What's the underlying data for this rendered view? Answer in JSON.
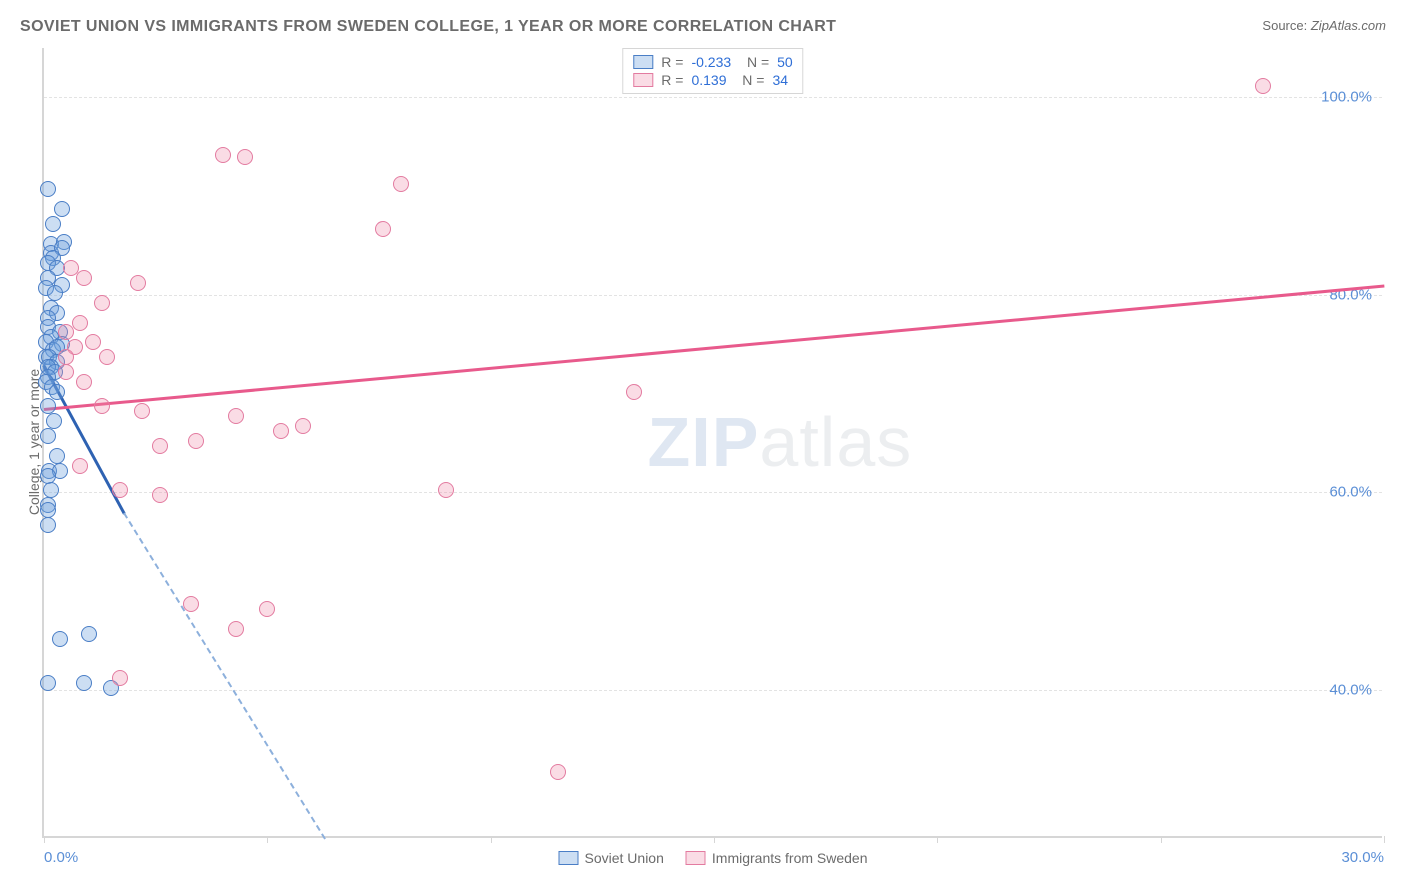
{
  "title": "SOVIET UNION VS IMMIGRANTS FROM SWEDEN COLLEGE, 1 YEAR OR MORE CORRELATION CHART",
  "source_label": "Source:",
  "source_value": "ZipAtlas.com",
  "y_axis_label": "College, 1 year or more",
  "watermark_zip": "ZIP",
  "watermark_atlas": "atlas",
  "chart": {
    "type": "scatter",
    "xlim": [
      0,
      30
    ],
    "ylim": [
      25,
      105
    ],
    "x_ticks": [
      0,
      5,
      10,
      15,
      20,
      25,
      30
    ],
    "x_tick_labels": {
      "0": "0.0%",
      "30": "30.0%"
    },
    "y_gridlines": [
      40,
      60,
      80,
      100
    ],
    "y_tick_labels": {
      "40": "40.0%",
      "60": "60.0%",
      "80": "80.0%",
      "100": "100.0%"
    },
    "background_color": "#ffffff",
    "grid_color": "#e3e3e3",
    "axis_color": "#d6d6d6",
    "tick_label_color": "#5b8fd6",
    "series": [
      {
        "name": "Soviet Union",
        "color_fill": "rgba(110,160,220,0.35)",
        "color_stroke": "#4a7ec6",
        "R": "-0.233",
        "N": "50",
        "trend": {
          "x1": 0,
          "y1": 73,
          "x2_solid": 1.8,
          "y2_solid": 58,
          "x2_dash": 6.3,
          "y2_dash": 25,
          "color": "#2e62b2"
        },
        "points": [
          [
            0.1,
            90.5
          ],
          [
            0.4,
            88.5
          ],
          [
            0.2,
            87
          ],
          [
            0.15,
            85
          ],
          [
            0.45,
            85.2
          ],
          [
            0.15,
            84
          ],
          [
            0.4,
            84.5
          ],
          [
            0.2,
            83.5
          ],
          [
            0.1,
            83
          ],
          [
            0.3,
            82.5
          ],
          [
            0.1,
            81.5
          ],
          [
            0.05,
            80.5
          ],
          [
            0.4,
            80.8
          ],
          [
            0.25,
            80
          ],
          [
            0.15,
            78.5
          ],
          [
            0.3,
            78
          ],
          [
            0.1,
            77.5
          ],
          [
            0.1,
            76.5
          ],
          [
            0.35,
            76
          ],
          [
            0.15,
            75.5
          ],
          [
            0.05,
            75
          ],
          [
            0.4,
            74.8
          ],
          [
            0.2,
            74.2
          ],
          [
            0.3,
            74.5
          ],
          [
            0.05,
            73.5
          ],
          [
            0.12,
            73.5
          ],
          [
            0.3,
            73
          ],
          [
            0.15,
            72.5
          ],
          [
            0.08,
            72.5
          ],
          [
            0.25,
            72
          ],
          [
            0.1,
            71.5
          ],
          [
            0.05,
            71
          ],
          [
            0.18,
            70.5
          ],
          [
            0.3,
            70
          ],
          [
            0.1,
            68.5
          ],
          [
            0.22,
            67
          ],
          [
            0.1,
            65.5
          ],
          [
            0.3,
            63.5
          ],
          [
            0.12,
            62
          ],
          [
            0.35,
            62
          ],
          [
            0.1,
            61.5
          ],
          [
            0.15,
            60
          ],
          [
            0.1,
            58.5
          ],
          [
            0.08,
            58
          ],
          [
            0.1,
            56.5
          ],
          [
            0.35,
            45
          ],
          [
            1.0,
            45.5
          ],
          [
            0.9,
            40.5
          ],
          [
            0.1,
            40.5
          ],
          [
            1.5,
            40
          ]
        ]
      },
      {
        "name": "Immigrants from Sweden",
        "color_fill": "rgba(240,140,170,0.3)",
        "color_stroke": "#e37ba0",
        "R": "0.139",
        "N": "34",
        "trend": {
          "x1": 0,
          "y1": 68.5,
          "x2_solid": 30,
          "y2_solid": 81,
          "color": "#e85a8c"
        },
        "points": [
          [
            27.3,
            101
          ],
          [
            4.0,
            94
          ],
          [
            4.5,
            93.8
          ],
          [
            8.0,
            91
          ],
          [
            7.6,
            86.5
          ],
          [
            0.6,
            82.5
          ],
          [
            0.9,
            81.5
          ],
          [
            2.1,
            81
          ],
          [
            1.3,
            79
          ],
          [
            0.8,
            77
          ],
          [
            0.5,
            76
          ],
          [
            1.1,
            75
          ],
          [
            0.7,
            74.5
          ],
          [
            0.5,
            73.5
          ],
          [
            1.4,
            73.5
          ],
          [
            0.5,
            72
          ],
          [
            0.9,
            71
          ],
          [
            13.2,
            70
          ],
          [
            1.3,
            68.5
          ],
          [
            2.2,
            68
          ],
          [
            4.3,
            67.5
          ],
          [
            5.3,
            66
          ],
          [
            5.8,
            66.5
          ],
          [
            3.4,
            65
          ],
          [
            2.6,
            64.5
          ],
          [
            0.8,
            62.5
          ],
          [
            1.7,
            60
          ],
          [
            2.6,
            59.5
          ],
          [
            9.0,
            60
          ],
          [
            3.3,
            48.5
          ],
          [
            5.0,
            48
          ],
          [
            4.3,
            46
          ],
          [
            1.7,
            41
          ],
          [
            11.5,
            31.5
          ]
        ]
      }
    ]
  },
  "legend_bottom": [
    {
      "swatch": "blue",
      "label": "Soviet Union"
    },
    {
      "swatch": "pink",
      "label": "Immigrants from Sweden"
    }
  ]
}
